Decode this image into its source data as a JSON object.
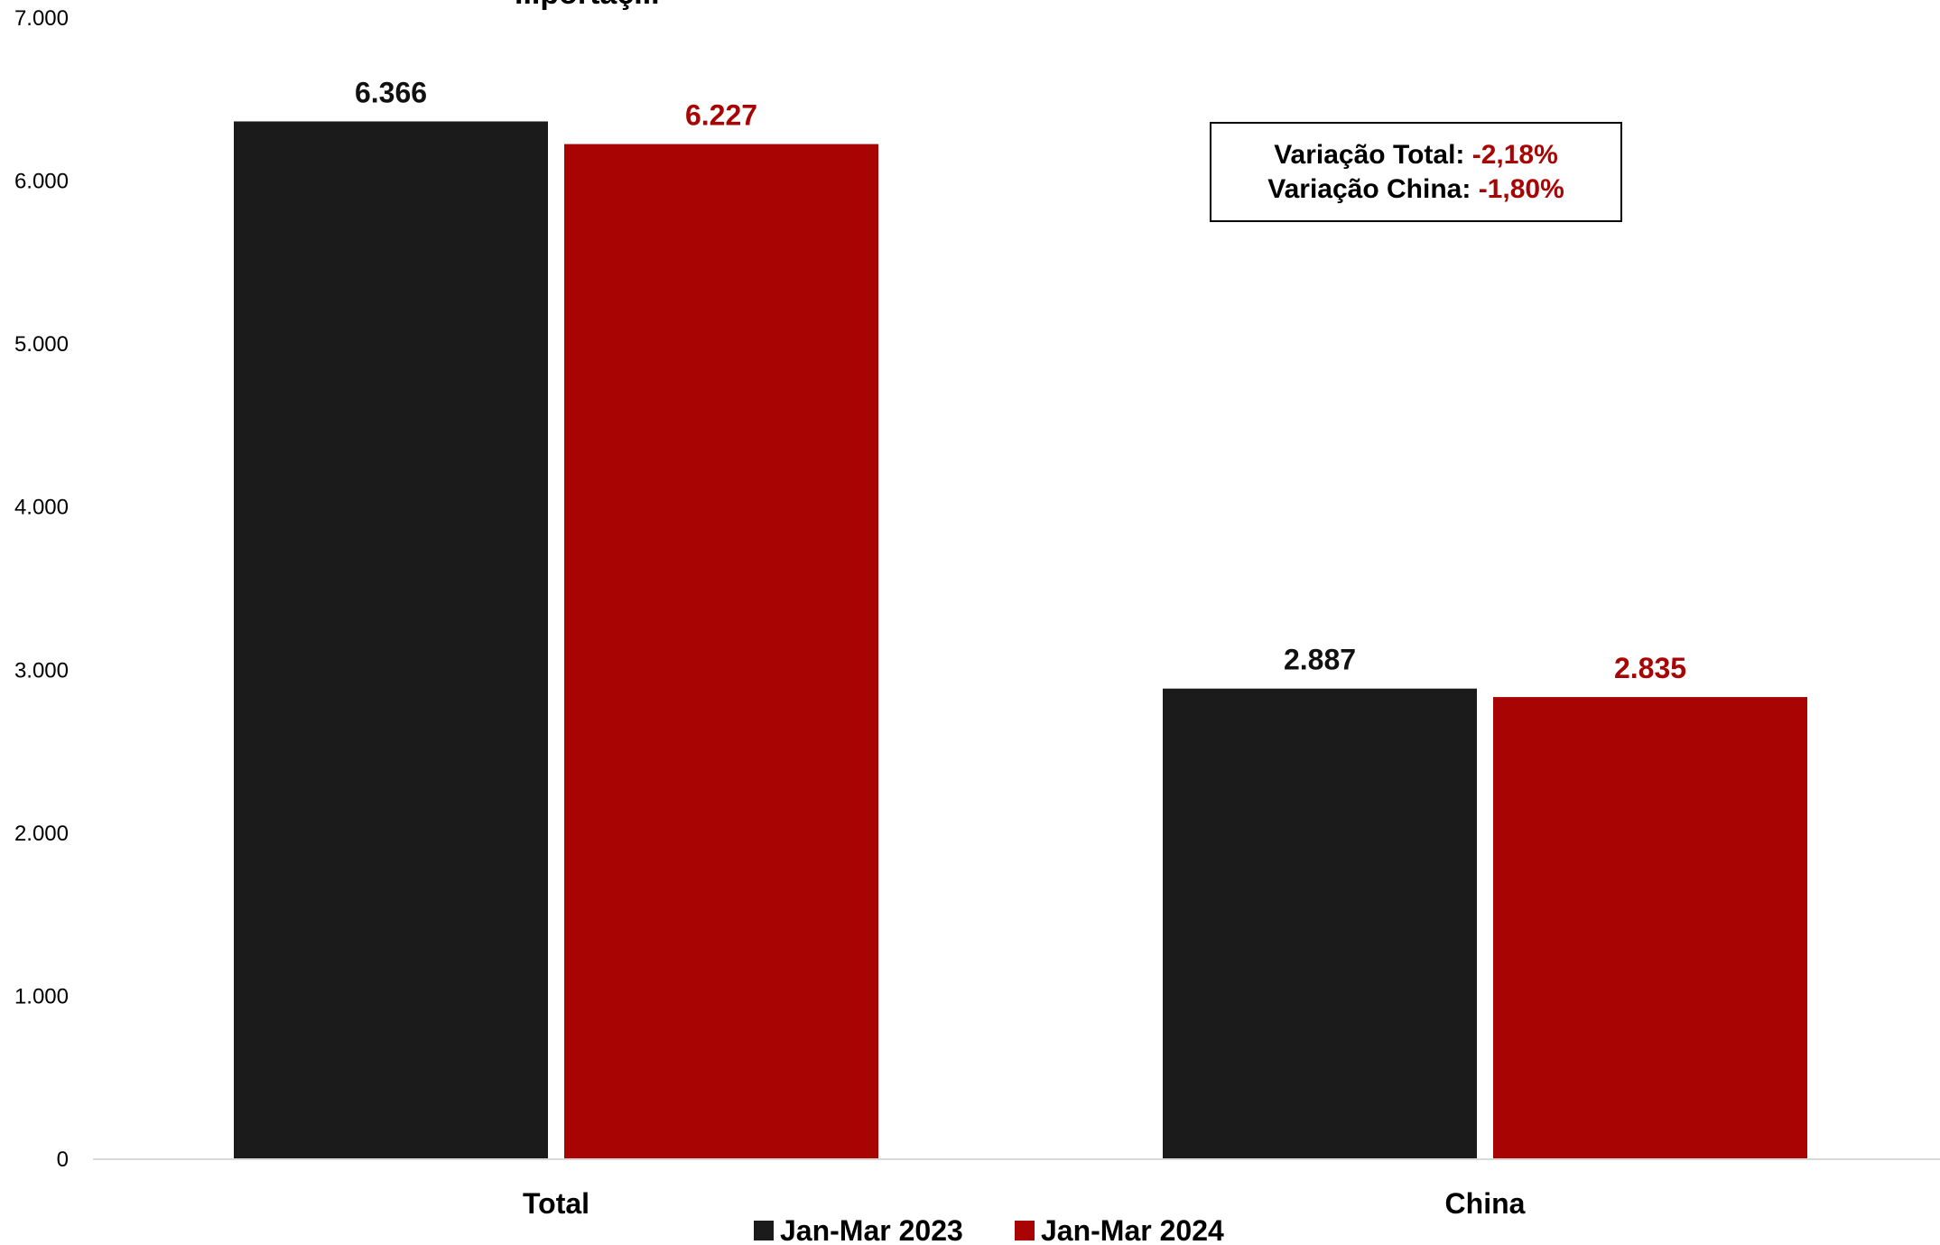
{
  "chart_data": {
    "type": "bar",
    "title": "...portaç...",
    "categories": [
      "Total",
      "China"
    ],
    "series": [
      {
        "name": "Jan-Mar 2023",
        "values": [
          6366,
          2887
        ],
        "labels": [
          "6.366",
          "2.887"
        ],
        "color": "#1b1b1b",
        "label_color": "#111111"
      },
      {
        "name": "Jan-Mar 2024",
        "values": [
          6227,
          2835
        ],
        "labels": [
          "6.227",
          "2.835"
        ],
        "color": "#a90404",
        "label_color": "#a90404"
      }
    ],
    "ylim": [
      0,
      7000
    ],
    "yticks": [
      0,
      1000,
      2000,
      3000,
      4000,
      5000,
      6000,
      7000
    ],
    "ytick_labels": [
      "0",
      "1.000",
      "2.000",
      "3.000",
      "4.000",
      "5.000",
      "6.000",
      "7.000"
    ],
    "xlabel": "",
    "ylabel": "",
    "grid": false,
    "legend_position": "bottom",
    "annotations": [
      {
        "label": "Variação Total:",
        "value": "-2,18%"
      },
      {
        "label": "Variação China:",
        "value": "-1,80%"
      }
    ],
    "axis_color": "#d9d9d9"
  }
}
